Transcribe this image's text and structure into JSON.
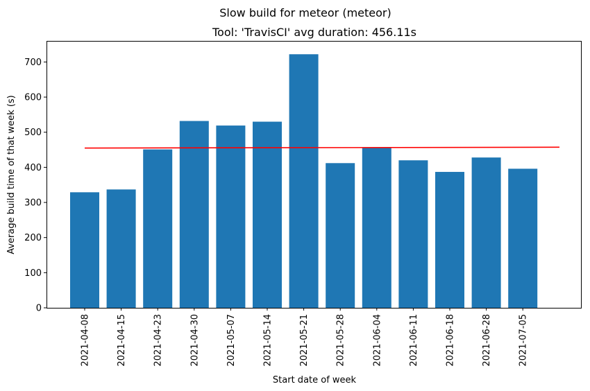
{
  "suptitle": "Slow build for meteor (meteor)",
  "chart_data": {
    "type": "bar",
    "title": "Tool: 'TravisCI' avg duration: 456.11s",
    "xlabel": "Start date of week",
    "ylabel": "Average build time of that week (s)",
    "categories": [
      "2021-04-08",
      "2021-04-15",
      "2021-04-23",
      "2021-04-30",
      "2021-05-07",
      "2021-05-14",
      "2021-05-21",
      "2021-05-28",
      "2021-06-04",
      "2021-06-11",
      "2021-06-18",
      "2021-06-28",
      "2021-07-05"
    ],
    "values": [
      329,
      337,
      451,
      532,
      519,
      530,
      722,
      412,
      457,
      420,
      387,
      428,
      396
    ],
    "average_line": {
      "value": 456.11,
      "color": "#ff0000"
    },
    "ylim": [
      0,
      760
    ],
    "yticks": [
      0,
      100,
      200,
      300,
      400,
      500,
      600,
      700
    ],
    "bar_color": "#1f77b4",
    "grid": false
  }
}
